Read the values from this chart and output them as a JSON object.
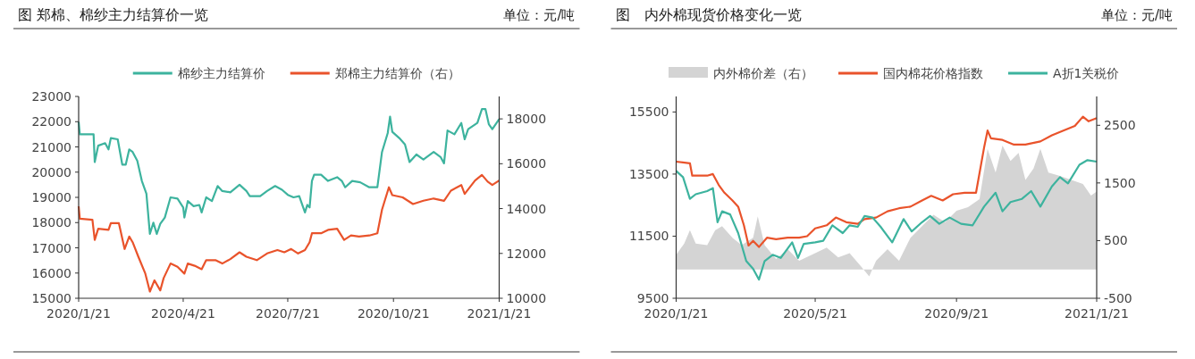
{
  "chart_data": [
    {
      "type": "line",
      "title": "图 郑棉、棉纱主力结算价一览",
      "annotations": [
        "单位：元/吨"
      ],
      "legend": "top",
      "xlim": [
        "2020-01-21",
        "2021-01-21"
      ],
      "xticks": [
        {
          "value": "2020-01-21",
          "label": "2020/1/21"
        },
        {
          "value": "2020-04-21",
          "label": "2020/4/21"
        },
        {
          "value": "2020-07-21",
          "label": "2020/7/21"
        },
        {
          "value": "2020-10-21",
          "label": "2020/10/21"
        },
        {
          "value": "2021-01-21",
          "label": "2021/1/21"
        }
      ],
      "ylim": [
        15000,
        23000
      ],
      "yticks": [
        15000,
        16000,
        17000,
        18000,
        19000,
        20000,
        21000,
        22000,
        23000
      ],
      "y2lim": [
        10000,
        19000
      ],
      "y2ticks": [
        10000,
        12000,
        14000,
        16000,
        18000
      ],
      "series": [
        {
          "name": "棉纱主力结算价",
          "color": "#3db39e",
          "x": [
            "2020-01-21",
            "2020-01-22",
            "2020-02-03",
            "2020-02-04",
            "2020-02-07",
            "2020-02-13",
            "2020-02-16",
            "2020-02-18",
            "2020-02-24",
            "2020-02-28",
            "2020-03-02",
            "2020-03-05",
            "2020-03-08",
            "2020-03-12",
            "2020-03-16",
            "2020-03-20",
            "2020-03-23",
            "2020-03-26",
            "2020-03-29",
            "2020-04-01",
            "2020-04-05",
            "2020-04-10",
            "2020-04-16",
            "2020-04-21",
            "2020-04-22",
            "2020-04-25",
            "2020-04-30",
            "2020-05-05",
            "2020-05-07",
            "2020-05-11",
            "2020-05-16",
            "2020-05-21",
            "2020-05-25",
            "2020-06-01",
            "2020-06-09",
            "2020-06-15",
            "2020-06-18",
            "2020-06-27",
            "2020-07-03",
            "2020-07-10",
            "2020-07-16",
            "2020-07-21",
            "2020-07-26",
            "2020-07-31",
            "2020-08-05",
            "2020-08-07",
            "2020-08-09",
            "2020-08-11",
            "2020-08-13",
            "2020-08-19",
            "2020-08-25",
            "2020-09-02",
            "2020-09-06",
            "2020-09-09",
            "2020-09-15",
            "2020-09-22",
            "2020-09-30",
            "2020-10-07",
            "2020-10-11",
            "2020-10-16",
            "2020-10-18",
            "2020-10-20",
            "2020-10-26",
            "2020-10-31",
            "2020-11-04",
            "2020-11-10",
            "2020-11-16",
            "2020-11-25",
            "2020-12-01",
            "2020-12-04",
            "2020-12-07",
            "2020-12-13",
            "2020-12-19",
            "2020-12-22",
            "2020-12-25",
            "2021-01-02",
            "2021-01-06",
            "2021-01-09",
            "2021-01-12",
            "2021-01-15",
            "2021-01-21"
          ],
          "values": [
            22000,
            21500,
            21500,
            20400,
            21050,
            21150,
            20900,
            21350,
            21300,
            20300,
            20300,
            20900,
            20800,
            20450,
            19650,
            19150,
            17550,
            18000,
            17550,
            17950,
            18200,
            19000,
            18950,
            18600,
            18200,
            18850,
            18650,
            18700,
            18400,
            19000,
            18850,
            19450,
            19250,
            19200,
            19500,
            19250,
            19050,
            19050,
            19250,
            19450,
            19300,
            19100,
            19000,
            19050,
            18400,
            18700,
            18600,
            19650,
            19900,
            19900,
            19650,
            19800,
            19650,
            19400,
            19650,
            19600,
            19400,
            19400,
            20800,
            21550,
            22200,
            21600,
            21350,
            21100,
            20400,
            20700,
            20500,
            20800,
            20600,
            20350,
            21650,
            21500,
            21950,
            21300,
            21700,
            21950,
            22500,
            22500,
            21900,
            21700,
            22100
          ]
        },
        {
          "name": "郑棉主力结算价（右）",
          "color": "#e9532b",
          "axis": "y2",
          "x": [
            "2020-01-21",
            "2020-01-22",
            "2020-02-02",
            "2020-02-04",
            "2020-02-07",
            "2020-02-16",
            "2020-02-18",
            "2020-02-25",
            "2020-03-01",
            "2020-03-05",
            "2020-03-08",
            "2020-03-13",
            "2020-03-19",
            "2020-03-23",
            "2020-03-27",
            "2020-04-01",
            "2020-04-04",
            "2020-04-10",
            "2020-04-16",
            "2020-04-22",
            "2020-04-25",
            "2020-05-01",
            "2020-05-07",
            "2020-05-11",
            "2020-05-19",
            "2020-05-25",
            "2020-06-01",
            "2020-06-09",
            "2020-06-15",
            "2020-06-24",
            "2020-07-03",
            "2020-07-12",
            "2020-07-18",
            "2020-07-24",
            "2020-07-30",
            "2020-08-05",
            "2020-08-09",
            "2020-08-11",
            "2020-08-19",
            "2020-08-25",
            "2020-09-02",
            "2020-09-08",
            "2020-09-14",
            "2020-09-21",
            "2020-09-30",
            "2020-10-07",
            "2020-10-11",
            "2020-10-17",
            "2020-10-20",
            "2020-10-29",
            "2020-11-07",
            "2020-11-16",
            "2020-11-25",
            "2020-12-04",
            "2020-12-10",
            "2020-12-19",
            "2020-12-22",
            "2020-12-31",
            "2021-01-06",
            "2021-01-11",
            "2021-01-15",
            "2021-01-21"
          ],
          "values": [
            14100,
            13550,
            13500,
            12600,
            13100,
            13050,
            13350,
            13350,
            12200,
            12750,
            12500,
            11850,
            11100,
            10300,
            10800,
            10350,
            10900,
            11550,
            11400,
            11100,
            11550,
            11450,
            11300,
            11700,
            11700,
            11550,
            11750,
            12050,
            11850,
            11700,
            12000,
            12150,
            12050,
            12200,
            12000,
            12150,
            12500,
            12900,
            12900,
            13050,
            13100,
            12600,
            12800,
            12750,
            12800,
            12900,
            13950,
            14950,
            14600,
            14500,
            14200,
            14350,
            14450,
            14350,
            14800,
            15050,
            14650,
            15250,
            15500,
            15200,
            15050,
            15250
          ]
        }
      ]
    },
    {
      "type": "line",
      "title": "图　内外棉现货价格变化一览",
      "annotations": [
        "单位：元/吨"
      ],
      "legend": "top",
      "xlim": [
        "2020-01-21",
        "2021-01-21"
      ],
      "xticks": [
        {
          "value": "2020-01-21",
          "label": "2020/1/21"
        },
        {
          "value": "2020-05-21",
          "label": "2020/5/21"
        },
        {
          "value": "2020-09-21",
          "label": "2020/9/21"
        },
        {
          "value": "2021-01-21",
          "label": "2021/1/21"
        }
      ],
      "ylim": [
        9500,
        16000
      ],
      "yticks": [
        9500,
        11500,
        13500,
        15500
      ],
      "y2lim": [
        -500,
        3000
      ],
      "y2ticks": [
        {
          "value": -500,
          "label": "-500"
        },
        500,
        1500,
        2500
      ],
      "series": [
        {
          "name": "内外棉价差（右）",
          "type": "area",
          "color": "#d4d4d4",
          "axis": "y2",
          "x": [
            "2020-01-21",
            "2020-01-28",
            "2020-02-02",
            "2020-02-07",
            "2020-02-17",
            "2020-02-24",
            "2020-03-01",
            "2020-03-10",
            "2020-03-18",
            "2020-03-28",
            "2020-04-01",
            "2020-04-07",
            "2020-04-17",
            "2020-04-27",
            "2020-05-07",
            "2020-05-21",
            "2020-05-31",
            "2020-06-10",
            "2020-06-20",
            "2020-06-30",
            "2020-07-07",
            "2020-07-13",
            "2020-07-23",
            "2020-08-02",
            "2020-08-12",
            "2020-08-22",
            "2020-09-01",
            "2020-09-11",
            "2020-09-21",
            "2020-10-01",
            "2020-10-11",
            "2020-10-18",
            "2020-10-25",
            "2020-10-31",
            "2020-11-07",
            "2020-11-14",
            "2020-11-20",
            "2020-11-27",
            "2020-12-03",
            "2020-12-10",
            "2020-12-20",
            "2020-12-30",
            "2021-01-09",
            "2021-01-16",
            "2021-01-21"
          ],
          "values": [
            250,
            450,
            680,
            450,
            420,
            680,
            750,
            550,
            420,
            550,
            920,
            420,
            180,
            350,
            150,
            280,
            380,
            210,
            280,
            50,
            -120,
            150,
            350,
            150,
            550,
            750,
            950,
            820,
            1020,
            1080,
            1220,
            2090,
            1680,
            2150,
            1880,
            2020,
            1550,
            1750,
            2090,
            1680,
            1620,
            1550,
            1480,
            1280,
            1350
          ]
        },
        {
          "name": "国内棉花价格指数",
          "color": "#e9532b",
          "x": [
            "2020-01-21",
            "2020-02-02",
            "2020-02-04",
            "2020-02-17",
            "2020-02-22",
            "2020-02-27",
            "2020-03-03",
            "2020-03-10",
            "2020-03-15",
            "2020-03-20",
            "2020-03-24",
            "2020-03-28",
            "2020-04-02",
            "2020-04-09",
            "2020-04-17",
            "2020-04-27",
            "2020-05-07",
            "2020-05-14",
            "2020-05-21",
            "2020-05-31",
            "2020-06-08",
            "2020-06-17",
            "2020-06-27",
            "2020-07-03",
            "2020-07-13",
            "2020-07-23",
            "2020-08-02",
            "2020-08-12",
            "2020-08-22",
            "2020-08-30",
            "2020-09-09",
            "2020-09-18",
            "2020-09-28",
            "2020-10-08",
            "2020-10-15",
            "2020-10-18",
            "2020-10-21",
            "2020-10-31",
            "2020-11-10",
            "2020-11-20",
            "2020-12-03",
            "2020-12-13",
            "2020-12-23",
            "2021-01-02",
            "2021-01-09",
            "2021-01-14",
            "2021-01-21"
          ],
          "values": [
            13900,
            13850,
            13450,
            13450,
            13500,
            13150,
            12900,
            12650,
            12450,
            11850,
            11200,
            11350,
            11150,
            11450,
            11400,
            11450,
            11450,
            11500,
            11750,
            11850,
            12100,
            11950,
            11900,
            12050,
            12100,
            12300,
            12400,
            12450,
            12650,
            12800,
            12650,
            12850,
            12900,
            12900,
            14350,
            14900,
            14650,
            14600,
            14450,
            14450,
            14550,
            14750,
            14900,
            15050,
            15350,
            15200,
            15300
          ]
        },
        {
          "name": "A折1关税价",
          "color": "#3db39e",
          "x": [
            "2020-01-21",
            "2020-01-27",
            "2020-02-02",
            "2020-02-07",
            "2020-02-17",
            "2020-02-22",
            "2020-02-26",
            "2020-03-01",
            "2020-03-08",
            "2020-03-15",
            "2020-03-22",
            "2020-03-28",
            "2020-04-02",
            "2020-04-07",
            "2020-04-14",
            "2020-04-21",
            "2020-05-01",
            "2020-05-06",
            "2020-05-11",
            "2020-05-21",
            "2020-05-28",
            "2020-06-05",
            "2020-06-14",
            "2020-06-20",
            "2020-06-27",
            "2020-07-03",
            "2020-07-10",
            "2020-07-17",
            "2020-07-27",
            "2020-08-06",
            "2020-08-13",
            "2020-08-22",
            "2020-08-29",
            "2020-09-06",
            "2020-09-15",
            "2020-09-25",
            "2020-10-05",
            "2020-10-15",
            "2020-10-25",
            "2020-10-31",
            "2020-11-07",
            "2020-11-17",
            "2020-11-25",
            "2020-12-03",
            "2020-12-13",
            "2020-12-20",
            "2020-12-27",
            "2021-01-06",
            "2021-01-13",
            "2021-01-21"
          ],
          "values": [
            13600,
            13400,
            12700,
            12850,
            12950,
            13050,
            11950,
            12300,
            12200,
            11600,
            10700,
            10450,
            10100,
            10700,
            10900,
            10800,
            11300,
            10800,
            11250,
            11300,
            11350,
            11850,
            11600,
            11850,
            11800,
            12150,
            12100,
            11800,
            11300,
            12050,
            11650,
            11950,
            12150,
            11900,
            12100,
            11900,
            11850,
            12450,
            12900,
            12300,
            12600,
            12700,
            12950,
            12450,
            13100,
            13400,
            13200,
            13800,
            13950,
            13900
          ]
        }
      ]
    }
  ]
}
